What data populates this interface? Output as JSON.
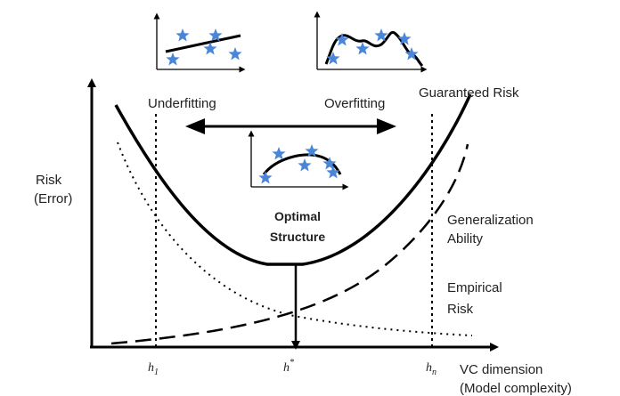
{
  "labels": {
    "y_axis_line1": "Risk",
    "y_axis_line2": "(Error)",
    "underfitting": "Underfitting",
    "overfitting": "Overfitting",
    "guaranteed_risk": "Guaranteed Risk",
    "optimal_line1": "Optimal",
    "optimal_line2": "Structure",
    "generalization_line1": "Generalization",
    "generalization_line2": "Ability",
    "empirical_line1": "Empirical",
    "empirical_line2": "Risk",
    "x_axis_line1": "VC dimension",
    "x_axis_line2": "(Model complexity)"
  },
  "ticks": {
    "h1": {
      "base": "h",
      "sub": "1"
    },
    "hstar": {
      "base": "h",
      "sup": "*"
    },
    "hn": {
      "base": "h",
      "sub": "n"
    }
  },
  "colors": {
    "curve": "#000000",
    "star": "#4a86d8",
    "text": "#222222"
  },
  "icons": {
    "star": "star-marker-icon"
  }
}
